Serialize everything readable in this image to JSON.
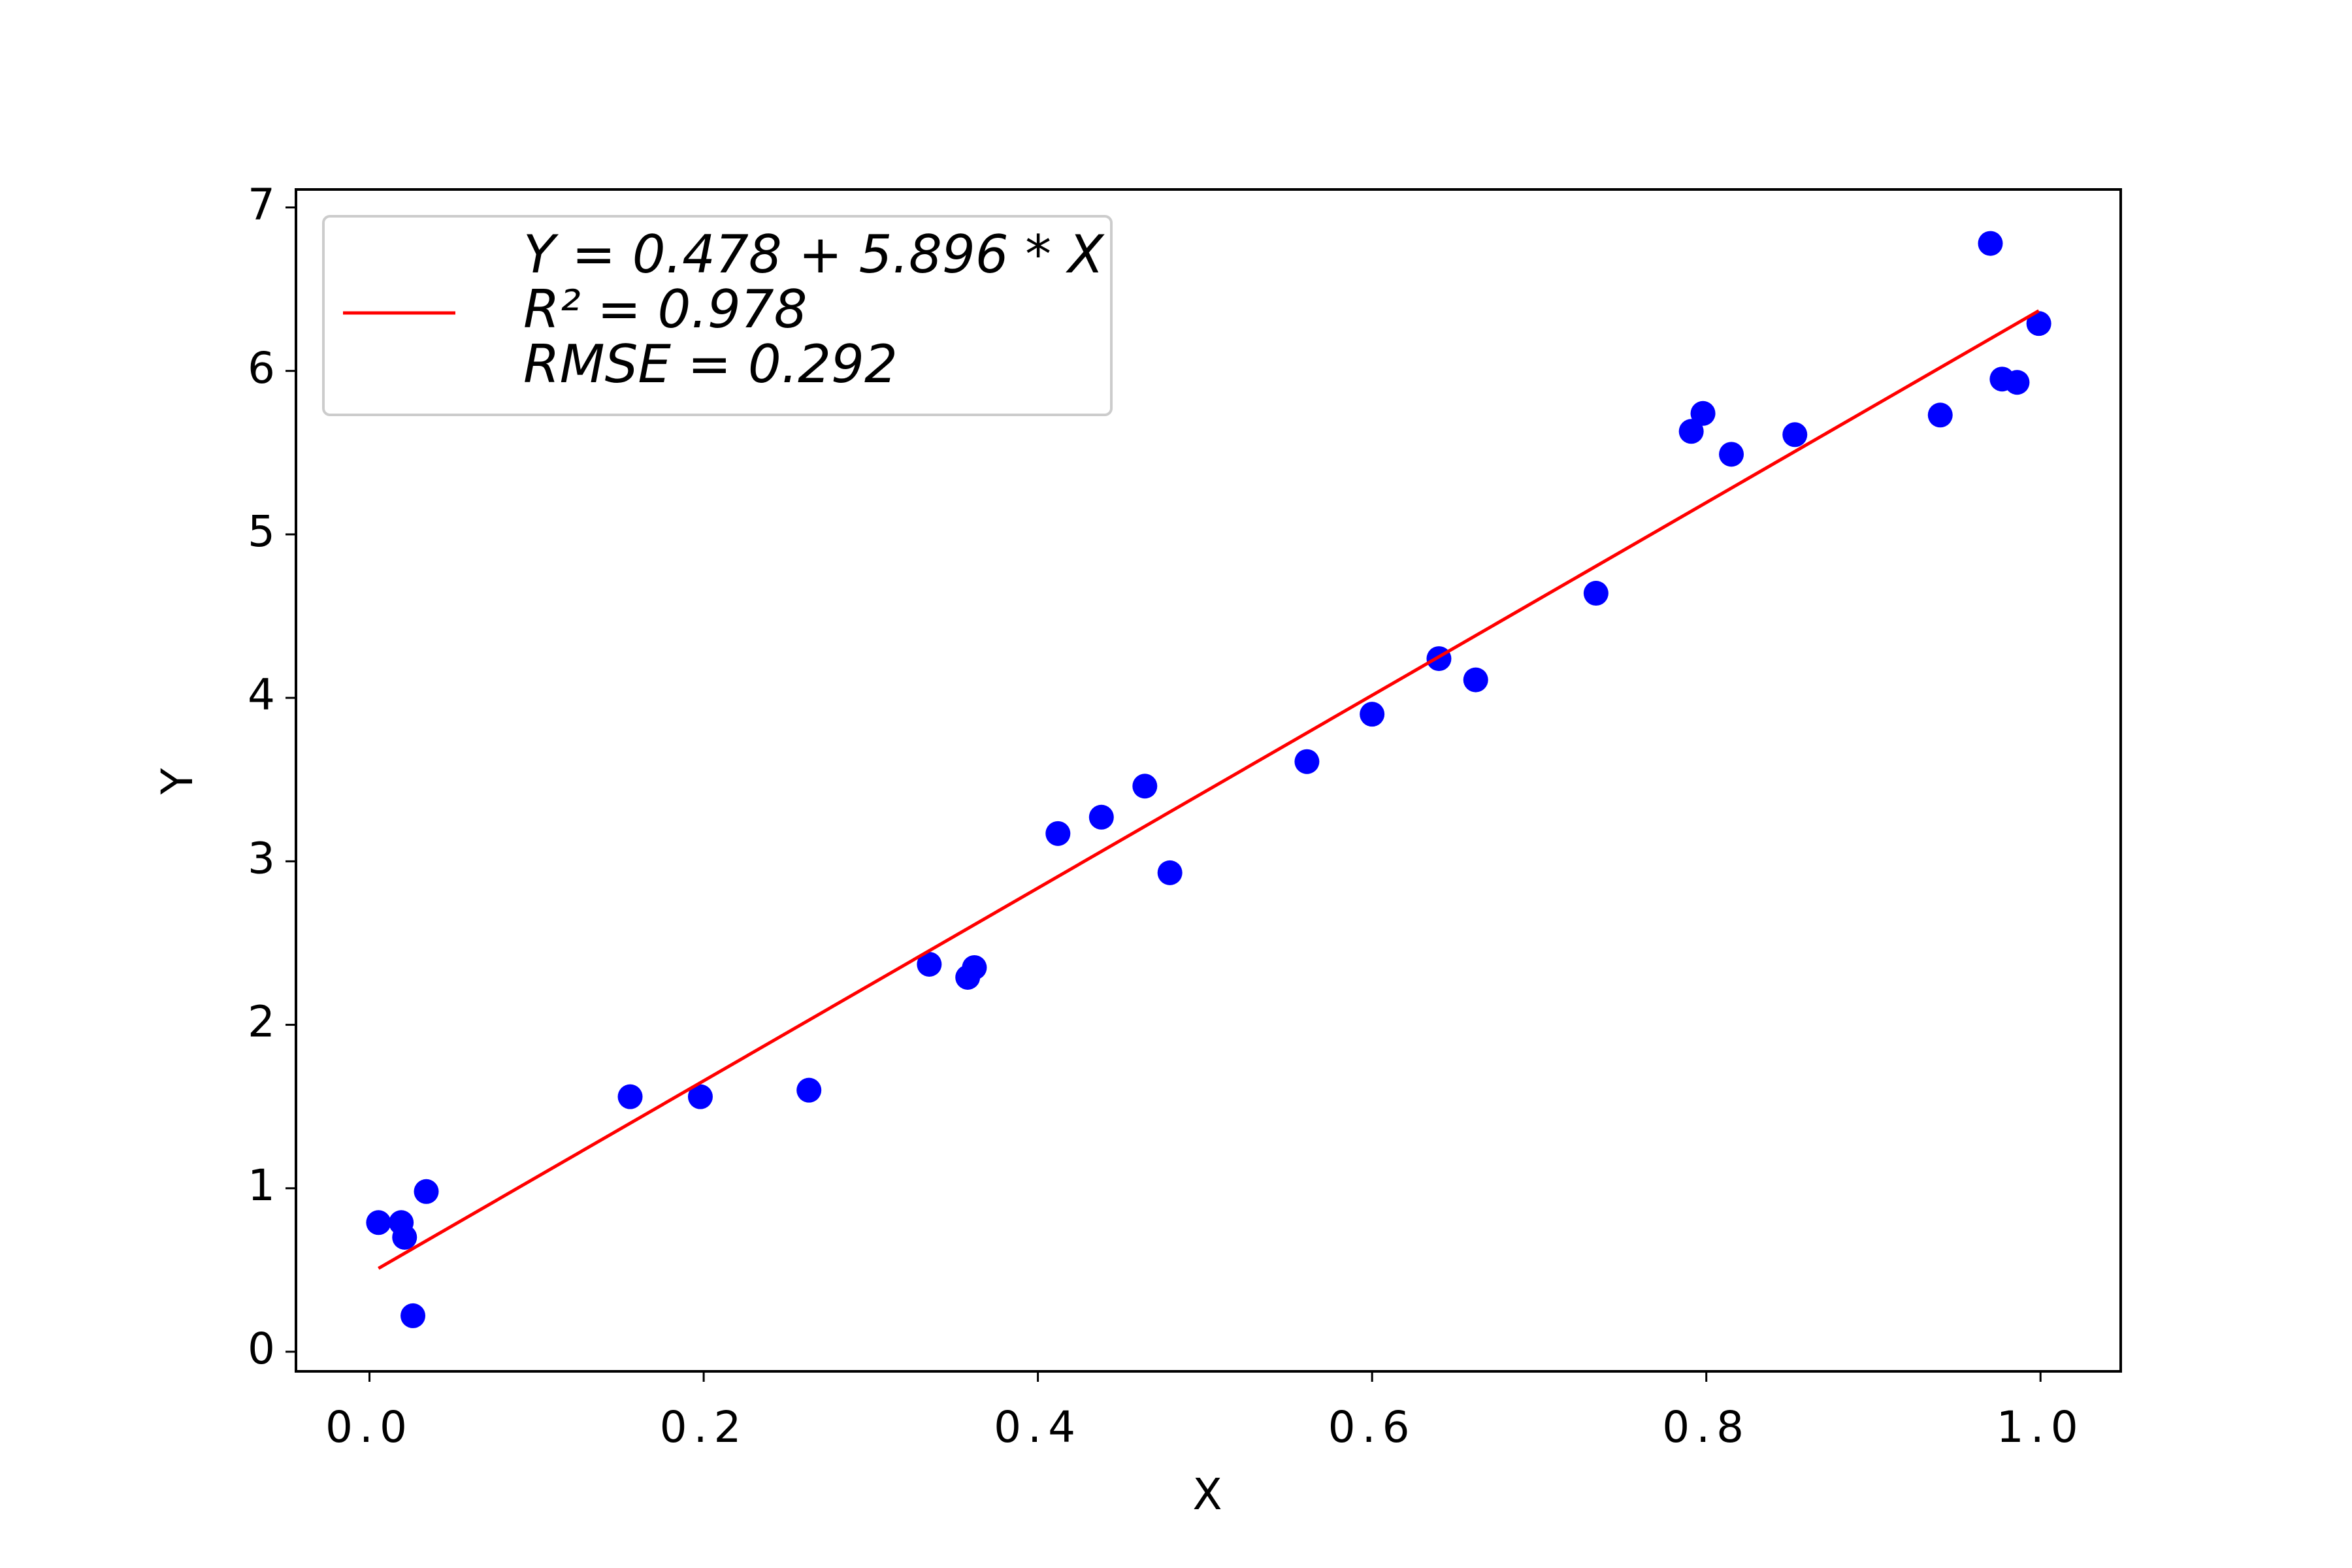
{
  "chart_data": {
    "type": "scatter",
    "x_label": "X",
    "y_label": "Y",
    "xlim": [
      -0.044,
      1.048
    ],
    "ylim": [
      -0.12,
      7.11
    ],
    "xticks": [
      {
        "value": 0,
        "label": "0.0"
      },
      0.2,
      0.4,
      0.6,
      0.8,
      {
        "value": 1,
        "label": "1.0"
      }
    ],
    "yticks": [
      0,
      1,
      2,
      3,
      4,
      5,
      6,
      7
    ],
    "legend_position": "upper left",
    "series": [
      {
        "type": "scatter",
        "color": "#0000ff",
        "x": [
          0.0054,
          0.019,
          0.021,
          0.034,
          0.026,
          0.156,
          0.198,
          0.263,
          0.335,
          0.358,
          0.362,
          0.412,
          0.438,
          0.464,
          0.479,
          0.561,
          0.6,
          0.64,
          0.662,
          0.734,
          0.791,
          0.798,
          0.815,
          0.853,
          0.94,
          0.97,
          0.977,
          0.986,
          0.999
        ],
        "values": [
          0.79,
          0.79,
          0.7,
          0.98,
          0.22,
          1.56,
          1.56,
          1.6,
          2.37,
          2.29,
          2.35,
          3.17,
          3.27,
          3.46,
          2.93,
          3.61,
          3.9,
          4.24,
          4.11,
          4.64,
          5.63,
          5.74,
          5.49,
          5.61,
          5.73,
          6.78,
          5.95,
          5.93,
          6.29
        ]
      },
      {
        "type": "line",
        "color": "#ff0000",
        "name": [
          "Y = 0.478 + 5.896 * X",
          "R² = 0.978",
          "RMSE = 0.292"
        ],
        "x": [
          0.0054,
          0.999
        ],
        "values": [
          0.51,
          6.368
        ]
      }
    ]
  }
}
